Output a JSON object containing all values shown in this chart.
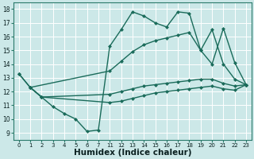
{
  "background_color": "#cce8e8",
  "grid_color": "#b8d8d8",
  "line_color": "#1a6b5a",
  "line_width": 1.0,
  "marker_size": 2.5,
  "xlabel": "Humidex (Indice chaleur)",
  "xlabel_fontsize": 7.5,
  "ylim": [
    8.5,
    18.5
  ],
  "yticks": [
    9,
    10,
    11,
    12,
    13,
    14,
    15,
    16,
    17,
    18
  ],
  "xlabels": [
    "0",
    "1",
    "2",
    "3",
    "4",
    "5",
    "6",
    "7",
    "",
    "",
    "",
    "11",
    "12",
    "13",
    "14",
    "15",
    "16",
    "17",
    "18",
    "19",
    "20",
    "21",
    "22",
    "23"
  ],
  "curves": [
    {
      "xi": [
        0,
        1,
        2,
        3,
        4,
        5,
        6,
        7,
        11,
        12,
        13,
        14,
        15,
        16,
        17,
        18,
        19,
        20,
        21,
        22,
        23
      ],
      "y": [
        13.3,
        12.3,
        11.6,
        10.9,
        10.4,
        10.0,
        9.1,
        9.2,
        15.3,
        16.5,
        17.8,
        17.5,
        17.0,
        16.7,
        17.8,
        17.7,
        15.0,
        14.0,
        16.6,
        14.1,
        12.5
      ]
    },
    {
      "xi": [
        0,
        1,
        11,
        12,
        13,
        14,
        15,
        16,
        17,
        18,
        19,
        20,
        21,
        22,
        23
      ],
      "y": [
        13.3,
        12.3,
        13.5,
        14.2,
        14.9,
        15.4,
        15.7,
        15.9,
        16.1,
        16.3,
        15.0,
        16.5,
        14.0,
        12.9,
        12.5
      ]
    },
    {
      "xi": [
        1,
        2,
        11,
        12,
        13,
        14,
        15,
        16,
        17,
        18,
        19,
        20,
        21,
        22,
        23
      ],
      "y": [
        12.3,
        11.6,
        11.8,
        12.0,
        12.2,
        12.4,
        12.5,
        12.6,
        12.7,
        12.8,
        12.9,
        12.9,
        12.6,
        12.4,
        12.5
      ]
    },
    {
      "xi": [
        1,
        2,
        11,
        12,
        13,
        14,
        15,
        16,
        17,
        18,
        19,
        20,
        21,
        22,
        23
      ],
      "y": [
        12.3,
        11.6,
        11.2,
        11.3,
        11.5,
        11.7,
        11.9,
        12.0,
        12.1,
        12.2,
        12.3,
        12.4,
        12.2,
        12.1,
        12.5
      ]
    }
  ]
}
